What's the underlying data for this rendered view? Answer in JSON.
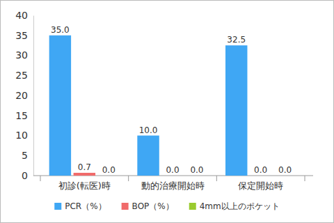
{
  "chart_data": {
    "type": "bar",
    "categories": [
      "初診(転医)時",
      "動的治療開始時",
      "保定開始時"
    ],
    "series": [
      {
        "name": "PCR（%）",
        "color": "#3fa7f4",
        "values": [
          35.0,
          10.0,
          32.5
        ],
        "value_labels": [
          "35.0",
          "10.0",
          "32.5"
        ]
      },
      {
        "name": "BOP（%）",
        "color": "#f06b6b",
        "values": [
          0.7,
          0,
          0
        ],
        "value_labels": [
          "0.7",
          "0.0",
          "0.0"
        ]
      },
      {
        "name": "4mm以上のポケット",
        "color": "#9acb2f",
        "values": [
          0,
          0,
          0
        ],
        "value_labels": [
          "0.0",
          "0.0",
          "0.0"
        ]
      }
    ],
    "ylim": [
      0,
      40
    ],
    "yticks": [
      0,
      5,
      10,
      15,
      20,
      25,
      30,
      35,
      40
    ],
    "grid": false,
    "data_labels": true,
    "legend": "bottom"
  }
}
